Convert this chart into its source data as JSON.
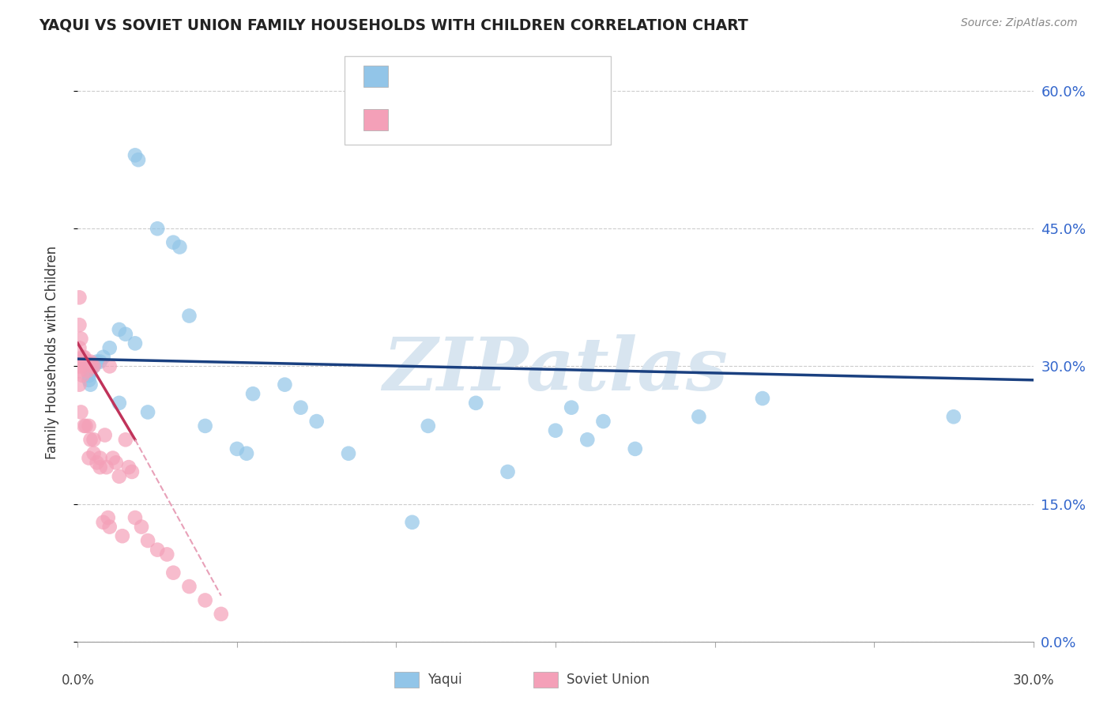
{
  "title": "YAQUI VS SOVIET UNION FAMILY HOUSEHOLDS WITH CHILDREN CORRELATION CHART",
  "source": "Source: ZipAtlas.com",
  "ylabel": "Family Households with Children",
  "ytick_vals": [
    0,
    15,
    30,
    45,
    60
  ],
  "xlim": [
    0,
    30
  ],
  "ylim": [
    0,
    63
  ],
  "yaqui_color": "#92c5e8",
  "soviet_color": "#f4a0b8",
  "yaqui_line_color": "#1a4080",
  "soviet_line_color": "#c0335a",
  "soviet_line_dashed_color": "#e8a0b8",
  "watermark": "ZIPatlas",
  "watermark_color": "#d8e5f0",
  "legend_text_color": "#3366cc",
  "yaqui_x": [
    1.8,
    1.9,
    2.5,
    3.0,
    3.2,
    3.5,
    1.3,
    1.5,
    1.8,
    1.0,
    0.8,
    0.7,
    0.6,
    0.5,
    0.4,
    0.4,
    0.35,
    0.35,
    0.4,
    1.3,
    2.2,
    4.0,
    5.0,
    5.3,
    5.5,
    6.5,
    7.0,
    7.5,
    8.5,
    10.5,
    12.5,
    13.5,
    15.5,
    16.5,
    17.5,
    19.5,
    21.5,
    11.0,
    15.0,
    16.0,
    27.5
  ],
  "yaqui_y": [
    53.0,
    52.5,
    45.0,
    43.5,
    43.0,
    35.5,
    34.0,
    33.5,
    32.5,
    32.0,
    31.0,
    30.5,
    30.5,
    30.0,
    30.0,
    29.5,
    29.0,
    28.5,
    28.0,
    26.0,
    25.0,
    23.5,
    21.0,
    20.5,
    27.0,
    28.0,
    25.5,
    24.0,
    20.5,
    13.0,
    26.0,
    18.5,
    25.5,
    24.0,
    21.0,
    24.5,
    26.5,
    23.5,
    23.0,
    22.0,
    24.5
  ],
  "soviet_x": [
    0.05,
    0.05,
    0.05,
    0.05,
    0.05,
    0.05,
    0.1,
    0.1,
    0.1,
    0.15,
    0.15,
    0.2,
    0.2,
    0.25,
    0.25,
    0.3,
    0.3,
    0.35,
    0.35,
    0.4,
    0.4,
    0.45,
    0.5,
    0.5,
    0.5,
    0.6,
    0.7,
    0.7,
    0.8,
    0.85,
    0.9,
    0.95,
    1.0,
    1.0,
    1.1,
    1.2,
    1.3,
    1.4,
    1.5,
    1.6,
    1.7,
    1.8,
    2.0,
    2.2,
    2.5,
    2.8,
    3.0,
    3.5,
    4.0,
    4.5
  ],
  "soviet_y": [
    37.5,
    34.5,
    32.0,
    30.0,
    29.5,
    28.0,
    33.0,
    30.5,
    25.0,
    31.0,
    29.0,
    31.0,
    23.5,
    30.5,
    23.5,
    30.5,
    29.5,
    23.5,
    20.0,
    30.5,
    22.0,
    30.0,
    30.0,
    22.0,
    20.5,
    19.5,
    20.0,
    19.0,
    13.0,
    22.5,
    19.0,
    13.5,
    30.0,
    12.5,
    20.0,
    19.5,
    18.0,
    11.5,
    22.0,
    19.0,
    18.5,
    13.5,
    12.5,
    11.0,
    10.0,
    9.5,
    7.5,
    6.0,
    4.5,
    3.0
  ],
  "yaqui_line_x0": 0.0,
  "yaqui_line_x1": 30.0,
  "yaqui_line_y0": 30.8,
  "yaqui_line_y1": 28.5,
  "soviet_solid_x0": 0.0,
  "soviet_solid_x1": 1.8,
  "soviet_solid_y0": 32.5,
  "soviet_solid_y1": 22.0,
  "soviet_dashed_x0": 1.8,
  "soviet_dashed_x1": 4.5,
  "soviet_dashed_y0": 22.0,
  "soviet_dashed_y1": 5.0
}
